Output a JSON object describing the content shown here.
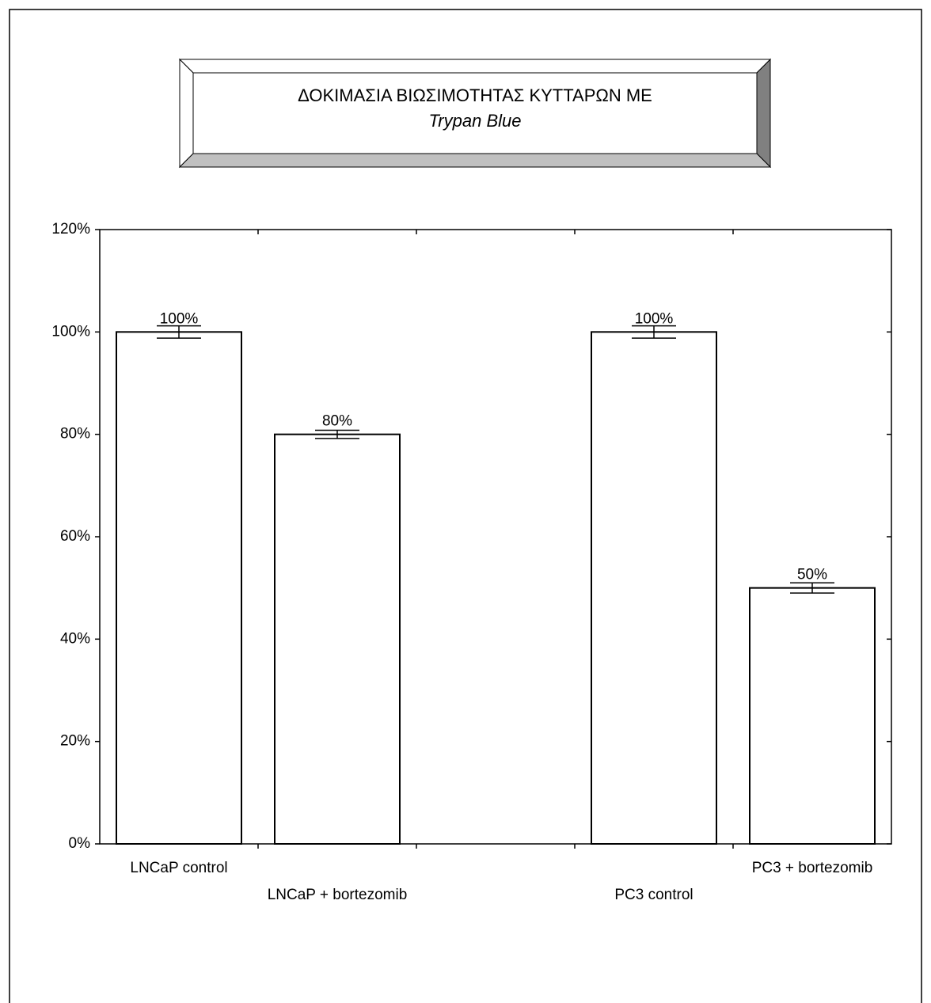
{
  "chart_data": {
    "type": "bar",
    "title": "ΔΟΚΙΜΑΣΙΑ ΒΙΩΣΙΜΟΤΗΤΑΣ ΚΥΤΤΑΡΩΝ ΜΕ",
    "subtitle": "Trypan Blue",
    "categories": [
      "LNCaP control",
      "LNCaP + bortezomib",
      null,
      "PC3 control",
      "PC3 + bortezomib"
    ],
    "values": [
      100,
      80,
      null,
      100,
      50
    ],
    "value_labels": [
      "100%",
      "80%",
      null,
      "100%",
      "50%"
    ],
    "errors": [
      1.2,
      0.8,
      null,
      1.2,
      1.0
    ],
    "color": "#ffffff",
    "ylim": [
      0,
      120
    ],
    "yticks": [
      {
        "value": 0,
        "label": "0%"
      },
      {
        "value": 20,
        "label": "20%"
      },
      {
        "value": 40,
        "label": "40%"
      },
      {
        "value": 60,
        "label": "60%"
      },
      {
        "value": 80,
        "label": "80%"
      },
      {
        "value": 100,
        "label": "100%"
      },
      {
        "value": 120,
        "label": "120%"
      }
    ],
    "grid": false
  }
}
